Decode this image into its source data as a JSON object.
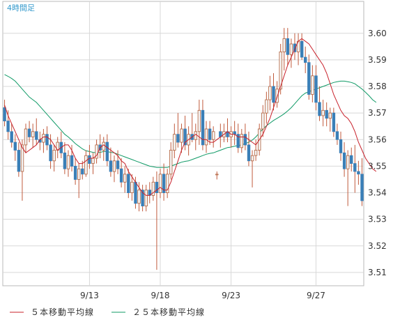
{
  "chart_data": {
    "type": "candlestick",
    "interval_label": "4時間足",
    "ylim": [
      3.505,
      3.612
    ],
    "y_ticks": [
      "3.60",
      "3.59",
      "3.58",
      "3.57",
      "3.56",
      "3.55",
      "3.54",
      "3.53",
      "3.52",
      "3.51"
    ],
    "x_ticks": [
      {
        "label": "9/13",
        "index": 24
      },
      {
        "label": "9/18",
        "index": 44
      },
      {
        "label": "9/23",
        "index": 64
      },
      {
        "label": "9/27",
        "index": 88
      }
    ],
    "grid": true,
    "colors": {
      "up_candle": "#f4f4f4",
      "up_border": "#b0603a",
      "down_candle": "#3a7fb7",
      "down_border": "#3a7fb7",
      "wick": "#c05a3c",
      "ma5": "#c8202a",
      "ma25": "#0f9a66",
      "grid": "#d8d8d8",
      "border": "#b8b8b8",
      "interval_label": "#3399cc"
    },
    "series": [
      {
        "name": "５本移動平均線",
        "color": "#c8202a",
        "values": [
          3.573,
          3.569,
          3.566,
          3.563,
          3.56,
          3.557,
          3.555,
          3.556,
          3.557,
          3.558,
          3.56,
          3.561,
          3.561,
          3.56,
          3.558,
          3.556,
          3.557,
          3.558,
          3.558,
          3.556,
          3.553,
          3.551,
          3.551,
          3.552,
          3.553,
          3.553,
          3.554,
          3.557,
          3.558,
          3.557,
          3.556,
          3.555,
          3.554,
          3.552,
          3.551,
          3.548,
          3.546,
          3.544,
          3.542,
          3.54,
          3.539,
          3.539,
          3.54,
          3.541,
          3.542,
          3.541,
          3.541,
          3.544,
          3.548,
          3.552,
          3.556,
          3.559,
          3.56,
          3.561,
          3.562,
          3.561,
          3.56,
          3.56,
          3.559,
          3.559,
          3.56,
          3.561,
          3.562,
          3.563,
          3.562,
          3.562,
          3.561,
          3.561,
          3.561,
          3.56,
          3.559,
          3.558,
          3.56,
          3.562,
          3.565,
          3.568,
          3.572,
          3.576,
          3.58,
          3.584,
          3.588,
          3.591,
          3.594,
          3.597,
          3.598,
          3.597,
          3.596,
          3.594,
          3.592,
          3.59,
          3.588,
          3.585,
          3.581,
          3.577,
          3.574,
          3.571,
          3.569,
          3.568,
          3.566,
          3.563,
          3.559,
          3.556,
          3.553,
          3.551,
          3.549,
          3.548
        ]
      },
      {
        "name": "２５本移動平均線",
        "color": "#0f9a66",
        "values": [
          3.5845,
          3.5838,
          3.583,
          3.582,
          3.5805,
          3.579,
          3.5775,
          3.576,
          3.575,
          3.574,
          3.5725,
          3.571,
          3.5695,
          3.568,
          3.5665,
          3.565,
          3.5635,
          3.562,
          3.561,
          3.5598,
          3.5585,
          3.5575,
          3.5565,
          3.5558,
          3.5555,
          3.5552,
          3.555,
          3.5552,
          3.5555,
          3.5555,
          3.5552,
          3.555,
          3.5545,
          3.554,
          3.5535,
          3.553,
          3.5525,
          3.552,
          3.5515,
          3.551,
          3.5505,
          3.55,
          3.5498,
          3.5495,
          3.5495,
          3.5495,
          3.5495,
          3.55,
          3.5505,
          3.551,
          3.5515,
          3.5518,
          3.552,
          3.5525,
          3.553,
          3.5535,
          3.554,
          3.5545,
          3.5548,
          3.555,
          3.5555,
          3.556,
          3.5565,
          3.557,
          3.5572,
          3.5575,
          3.5578,
          3.558,
          3.5585,
          3.559,
          3.5598,
          3.561,
          3.5625,
          3.564,
          3.5652,
          3.5662,
          3.5672,
          3.568,
          3.5688,
          3.5697,
          3.5708,
          3.572,
          3.5735,
          3.575,
          3.5765,
          3.5775,
          3.578,
          3.5785,
          3.579,
          3.5795,
          3.58,
          3.5805,
          3.581,
          3.5815,
          3.5818,
          3.582,
          3.582,
          3.5818,
          3.5815,
          3.581,
          3.58,
          3.579,
          3.5778,
          3.5765,
          3.575,
          3.574
        ]
      }
    ],
    "candles": [
      [
        3.572,
        3.575,
        3.565,
        3.567
      ],
      [
        3.567,
        3.571,
        3.56,
        3.563
      ],
      [
        3.563,
        3.566,
        3.557,
        3.559
      ],
      [
        3.559,
        3.562,
        3.552,
        3.556
      ],
      [
        3.556,
        3.559,
        3.546,
        3.548
      ],
      [
        3.548,
        3.56,
        3.537,
        3.558
      ],
      [
        3.558,
        3.566,
        3.555,
        3.564
      ],
      [
        3.564,
        3.567,
        3.559,
        3.561
      ],
      [
        3.561,
        3.566,
        3.557,
        3.563
      ],
      [
        3.563,
        3.568,
        3.558,
        3.56
      ],
      [
        3.56,
        3.563,
        3.556,
        3.559
      ],
      [
        3.559,
        3.564,
        3.555,
        3.562
      ],
      [
        3.562,
        3.565,
        3.556,
        3.558
      ],
      [
        3.558,
        3.562,
        3.549,
        3.552
      ],
      [
        3.552,
        3.558,
        3.548,
        3.556
      ],
      [
        3.556,
        3.561,
        3.553,
        3.559
      ],
      [
        3.559,
        3.563,
        3.553,
        3.555
      ],
      [
        3.555,
        3.559,
        3.547,
        3.549
      ],
      [
        3.549,
        3.556,
        3.546,
        3.554
      ],
      [
        3.554,
        3.558,
        3.548,
        3.55
      ],
      [
        3.55,
        3.553,
        3.543,
        3.545
      ],
      [
        3.545,
        3.551,
        3.538,
        3.549
      ],
      [
        3.549,
        3.552,
        3.545,
        3.547
      ],
      [
        3.547,
        3.556,
        3.546,
        3.554
      ],
      [
        3.554,
        3.558,
        3.549,
        3.551
      ],
      [
        3.551,
        3.555,
        3.547,
        3.553
      ],
      [
        3.553,
        3.56,
        3.551,
        3.558
      ],
      [
        3.558,
        3.562,
        3.553,
        3.556
      ],
      [
        3.556,
        3.561,
        3.552,
        3.559
      ],
      [
        3.559,
        3.562,
        3.55,
        3.552
      ],
      [
        3.552,
        3.557,
        3.546,
        3.548
      ],
      [
        3.548,
        3.554,
        3.544,
        3.552
      ],
      [
        3.552,
        3.556,
        3.547,
        3.549
      ],
      [
        3.549,
        3.553,
        3.542,
        3.544
      ],
      [
        3.544,
        3.55,
        3.54,
        3.547
      ],
      [
        3.547,
        3.549,
        3.538,
        3.54
      ],
      [
        3.54,
        3.547,
        3.537,
        3.544
      ],
      [
        3.544,
        3.546,
        3.534,
        3.536
      ],
      [
        3.536,
        3.544,
        3.533,
        3.541
      ],
      [
        3.541,
        3.543,
        3.533,
        3.535
      ],
      [
        3.535,
        3.543,
        3.533,
        3.541
      ],
      [
        3.541,
        3.544,
        3.536,
        3.539
      ],
      [
        3.539,
        3.546,
        3.537,
        3.544
      ],
      [
        3.544,
        3.548,
        3.511,
        3.54
      ],
      [
        3.54,
        3.549,
        3.538,
        3.547
      ],
      [
        3.547,
        3.551,
        3.537,
        3.54
      ],
      [
        3.54,
        3.549,
        3.538,
        3.547
      ],
      [
        3.547,
        3.559,
        3.545,
        3.556
      ],
      [
        3.556,
        3.566,
        3.553,
        3.562
      ],
      [
        3.562,
        3.57,
        3.557,
        3.559
      ],
      [
        3.559,
        3.566,
        3.555,
        3.564
      ],
      [
        3.564,
        3.569,
        3.556,
        3.558
      ],
      [
        3.558,
        3.565,
        3.554,
        3.562
      ],
      [
        3.562,
        3.57,
        3.559,
        3.56
      ],
      [
        3.56,
        3.566,
        3.556,
        3.563
      ],
      [
        3.563,
        3.575,
        3.558,
        3.571
      ],
      [
        3.571,
        3.575,
        3.556,
        3.558
      ],
      [
        3.558,
        3.567,
        3.555,
        3.564
      ],
      [
        3.564,
        3.567,
        3.558,
        3.56
      ],
      [
        3.56,
        3.565,
        3.557,
        3.563
      ],
      [
        3.547,
        3.548,
        3.545,
        3.547
      ],
      [
        3.563,
        3.566,
        3.557,
        3.561
      ],
      [
        3.561,
        3.566,
        3.559,
        3.563
      ],
      [
        3.563,
        3.568,
        3.559,
        3.561
      ],
      [
        3.561,
        3.565,
        3.557,
        3.563
      ],
      [
        3.563,
        3.567,
        3.558,
        3.562
      ],
      [
        3.562,
        3.566,
        3.555,
        3.557
      ],
      [
        3.557,
        3.564,
        3.555,
        3.562
      ],
      [
        3.562,
        3.566,
        3.556,
        3.558
      ],
      [
        3.558,
        3.563,
        3.55,
        3.552
      ],
      [
        3.552,
        3.556,
        3.542,
        3.554
      ],
      [
        3.554,
        3.56,
        3.552,
        3.556
      ],
      [
        3.556,
        3.566,
        3.554,
        3.564
      ],
      [
        3.564,
        3.573,
        3.561,
        3.57
      ],
      [
        3.57,
        3.578,
        3.566,
        3.575
      ],
      [
        3.575,
        3.584,
        3.571,
        3.58
      ],
      [
        3.58,
        3.585,
        3.571,
        3.574
      ],
      [
        3.574,
        3.582,
        3.572,
        3.579
      ],
      [
        3.579,
        3.596,
        3.577,
        3.593
      ],
      [
        3.593,
        3.602,
        3.586,
        3.598
      ],
      [
        3.598,
        3.602,
        3.588,
        3.592
      ],
      [
        3.592,
        3.598,
        3.587,
        3.596
      ],
      [
        3.596,
        3.6,
        3.59,
        3.593
      ],
      [
        3.593,
        3.6,
        3.588,
        3.597
      ],
      [
        3.597,
        3.6,
        3.59,
        3.591
      ],
      [
        3.591,
        3.595,
        3.585,
        3.589
      ],
      [
        3.589,
        3.592,
        3.575,
        3.577
      ],
      [
        3.577,
        3.588,
        3.574,
        3.584
      ],
      [
        3.584,
        3.588,
        3.571,
        3.574
      ],
      [
        3.574,
        3.58,
        3.567,
        3.569
      ],
      [
        3.569,
        3.575,
        3.565,
        3.571
      ],
      [
        3.571,
        3.574,
        3.565,
        3.568
      ],
      [
        3.568,
        3.572,
        3.563,
        3.57
      ],
      [
        3.57,
        3.572,
        3.561,
        3.563
      ],
      [
        3.563,
        3.566,
        3.558,
        3.56
      ],
      [
        3.56,
        3.563,
        3.552,
        3.555
      ],
      [
        3.555,
        3.559,
        3.546,
        3.549
      ],
      [
        3.549,
        3.556,
        3.535,
        3.554
      ],
      [
        3.554,
        3.557,
        3.548,
        3.551
      ],
      [
        3.551,
        3.558,
        3.54,
        3.548
      ],
      [
        3.548,
        3.552,
        3.543,
        3.547
      ],
      [
        3.547,
        3.553,
        3.535,
        3.537
      ]
    ]
  },
  "legend": {
    "ma5_label": "５本移動平均線",
    "ma25_label": "２５本移動平均線"
  }
}
